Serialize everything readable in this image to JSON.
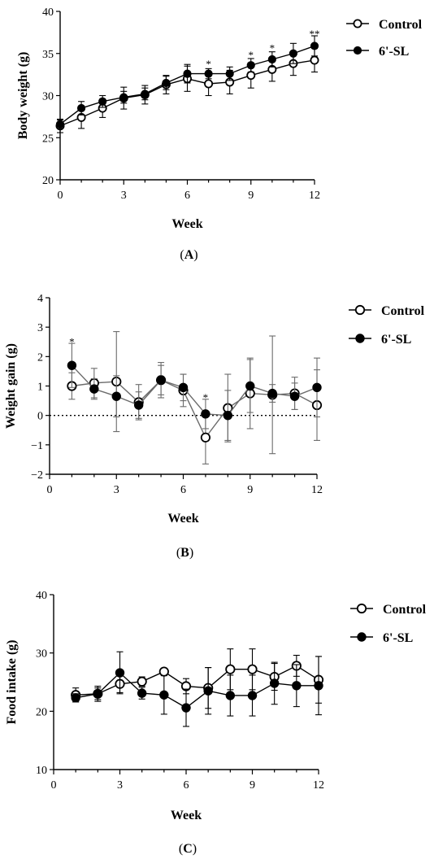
{
  "chart_data": [
    {
      "type": "line",
      "panel_label": "(A)",
      "xlabel": "Week",
      "ylabel": "Body weight (g)",
      "xlim": [
        0,
        12
      ],
      "ylim": [
        20,
        40
      ],
      "xticks": [
        0,
        3,
        6,
        9,
        12
      ],
      "yticks": [
        20,
        25,
        30,
        35,
        40
      ],
      "grid": false,
      "legend_position": "top-right",
      "series": [
        {
          "name": "Control",
          "marker": "open-circle",
          "x": [
            0,
            1,
            2,
            3,
            4,
            5,
            6,
            7,
            8,
            9,
            10,
            11,
            12
          ],
          "y": [
            26.4,
            27.4,
            28.5,
            29.7,
            30.1,
            31.3,
            32.0,
            31.4,
            31.6,
            32.4,
            33.1,
            33.8,
            34.2
          ],
          "error": [
            0.8,
            1.3,
            1.1,
            1.3,
            1.1,
            1.1,
            1.5,
            1.4,
            1.4,
            1.5,
            1.4,
            1.4,
            1.4
          ]
        },
        {
          "name": "6'-SL",
          "marker": "filled-circle",
          "x": [
            0,
            1,
            2,
            3,
            4,
            5,
            6,
            7,
            8,
            9,
            10,
            11,
            12
          ],
          "y": [
            26.6,
            28.5,
            29.3,
            29.8,
            30.2,
            31.5,
            32.6,
            32.6,
            32.6,
            33.6,
            34.3,
            35.0,
            35.9
          ],
          "error": [
            0.5,
            0.8,
            0.7,
            0.7,
            0.7,
            0.8,
            1.1,
            0.6,
            0.8,
            0.8,
            0.9,
            1.2,
            1.2
          ]
        }
      ],
      "annotations": [
        {
          "x": 7,
          "y": 33.9,
          "text": "*"
        },
        {
          "x": 9,
          "y": 35.0,
          "text": "*"
        },
        {
          "x": 10,
          "y": 35.8,
          "text": "*"
        },
        {
          "x": 12,
          "y": 37.5,
          "text": "**"
        }
      ]
    },
    {
      "type": "line",
      "panel_label": "(B)",
      "xlabel": "Week",
      "ylabel": "Weight gain (g)",
      "xlim": [
        0,
        12
      ],
      "ylim": [
        -2,
        4
      ],
      "xticks": [
        0,
        3,
        6,
        9,
        12
      ],
      "yticks": [
        -2,
        -1,
        0,
        1,
        2,
        3,
        4
      ],
      "grid": false,
      "reference_line": 0,
      "legend_position": "top-right",
      "series": [
        {
          "name": "Control",
          "marker": "open-circle",
          "x": [
            1,
            2,
            3,
            4,
            5,
            6,
            7,
            8,
            9,
            10,
            11,
            12
          ],
          "y": [
            1.0,
            1.1,
            1.15,
            0.45,
            1.2,
            0.85,
            -0.75,
            0.25,
            0.75,
            0.7,
            0.75,
            0.35
          ],
          "error": [
            0.45,
            0.5,
            1.7,
            0.6,
            0.6,
            0.55,
            0.9,
            1.15,
            1.2,
            2.0,
            0.55,
            1.2
          ]
        },
        {
          "name": "6'-SL",
          "marker": "filled-circle",
          "x": [
            1,
            2,
            3,
            4,
            5,
            6,
            7,
            8,
            9,
            10,
            11,
            12
          ],
          "y": [
            1.7,
            0.9,
            0.65,
            0.35,
            1.2,
            0.95,
            0.05,
            0.0,
            1.0,
            0.75,
            0.65,
            0.95
          ],
          "error": [
            0.75,
            0.35,
            0.7,
            0.45,
            0.5,
            0.45,
            0.5,
            0.85,
            0.9,
            0.3,
            0.45,
            1.0
          ]
        }
      ],
      "annotations": [
        {
          "x": 1,
          "y": 2.55,
          "text": "*"
        },
        {
          "x": 7,
          "y": 0.65,
          "text": "*"
        }
      ]
    },
    {
      "type": "line",
      "panel_label": "(C)",
      "xlabel": "Week",
      "ylabel": "Food intake (g)",
      "xlim": [
        0,
        12
      ],
      "ylim": [
        10,
        40
      ],
      "xticks": [
        0,
        3,
        6,
        9,
        12
      ],
      "yticks": [
        10,
        20,
        30,
        40
      ],
      "grid": false,
      "legend_position": "top-right",
      "series": [
        {
          "name": "Control",
          "marker": "open-circle",
          "x": [
            1,
            2,
            3,
            4,
            5,
            6,
            7,
            8,
            9,
            10,
            11,
            12
          ],
          "y": [
            22.8,
            23.0,
            24.7,
            25.1,
            26.8,
            24.3,
            24.0,
            27.2,
            27.2,
            25.9,
            27.8,
            25.4
          ],
          "error": [
            1.2,
            1.3,
            1.5,
            0.8,
            0.5,
            1.3,
            3.5,
            3.5,
            3.5,
            2.3,
            1.8,
            4.0
          ]
        },
        {
          "name": "6'-SL",
          "marker": "filled-circle",
          "x": [
            1,
            2,
            3,
            4,
            5,
            6,
            7,
            8,
            9,
            10,
            11,
            12
          ],
          "y": [
            22.3,
            23.0,
            26.6,
            23.1,
            22.8,
            20.6,
            23.5,
            22.7,
            22.7,
            24.8,
            24.4,
            24.4
          ],
          "error": [
            0.7,
            1.0,
            3.6,
            1.0,
            3.3,
            3.2,
            4.0,
            3.5,
            3.5,
            3.6,
            3.6,
            5.0
          ]
        }
      ],
      "annotations": []
    }
  ]
}
